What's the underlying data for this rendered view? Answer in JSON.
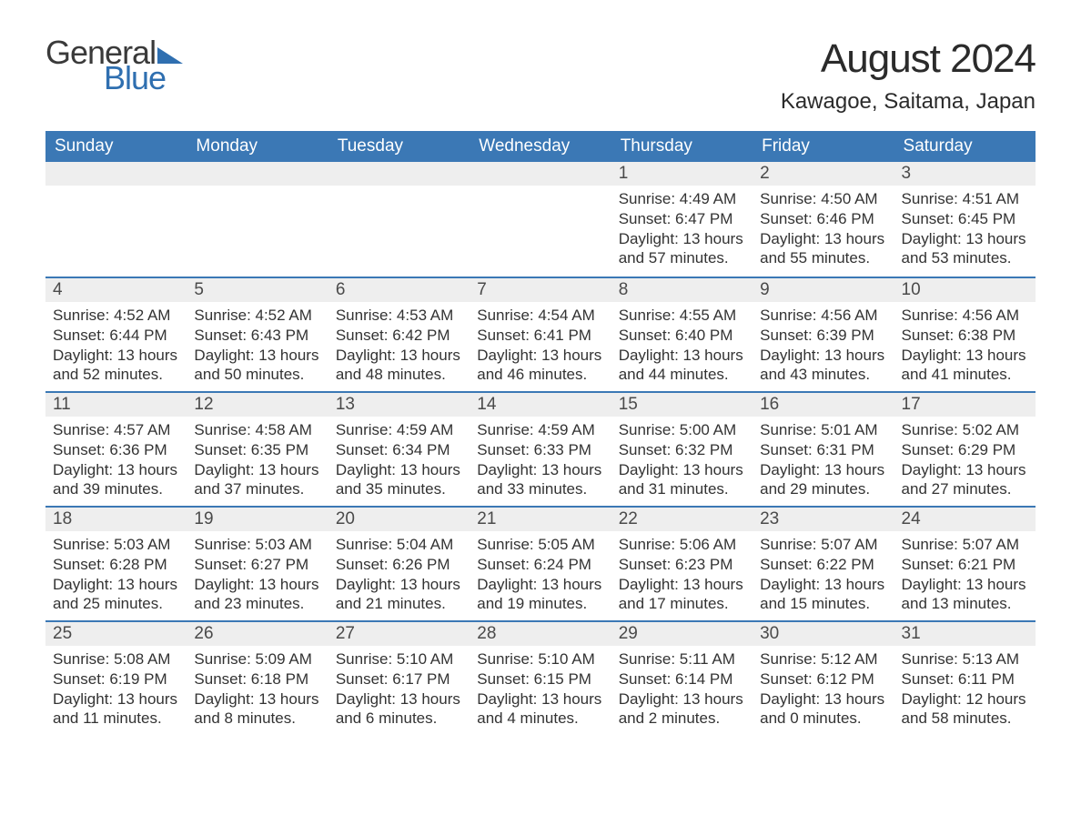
{
  "brand": {
    "word1": "General",
    "word2": "Blue",
    "accent_color": "#2f6fb0"
  },
  "title": "August 2024",
  "location": "Kawagoe, Saitama, Japan",
  "colors": {
    "header_bg": "#3b78b5",
    "header_text": "#ffffff",
    "daynum_bg": "#eeeeee",
    "week_border": "#3b78b5",
    "body_text": "#333333",
    "page_bg": "#ffffff"
  },
  "weekdays": [
    "Sunday",
    "Monday",
    "Tuesday",
    "Wednesday",
    "Thursday",
    "Friday",
    "Saturday"
  ],
  "labels": {
    "sunrise": "Sunrise:",
    "sunset": "Sunset:",
    "daylight": "Daylight:"
  },
  "weeks": [
    [
      null,
      null,
      null,
      null,
      {
        "n": "1",
        "sunrise": "4:49 AM",
        "sunset": "6:47 PM",
        "daylight": "13 hours and 57 minutes."
      },
      {
        "n": "2",
        "sunrise": "4:50 AM",
        "sunset": "6:46 PM",
        "daylight": "13 hours and 55 minutes."
      },
      {
        "n": "3",
        "sunrise": "4:51 AM",
        "sunset": "6:45 PM",
        "daylight": "13 hours and 53 minutes."
      }
    ],
    [
      {
        "n": "4",
        "sunrise": "4:52 AM",
        "sunset": "6:44 PM",
        "daylight": "13 hours and 52 minutes."
      },
      {
        "n": "5",
        "sunrise": "4:52 AM",
        "sunset": "6:43 PM",
        "daylight": "13 hours and 50 minutes."
      },
      {
        "n": "6",
        "sunrise": "4:53 AM",
        "sunset": "6:42 PM",
        "daylight": "13 hours and 48 minutes."
      },
      {
        "n": "7",
        "sunrise": "4:54 AM",
        "sunset": "6:41 PM",
        "daylight": "13 hours and 46 minutes."
      },
      {
        "n": "8",
        "sunrise": "4:55 AM",
        "sunset": "6:40 PM",
        "daylight": "13 hours and 44 minutes."
      },
      {
        "n": "9",
        "sunrise": "4:56 AM",
        "sunset": "6:39 PM",
        "daylight": "13 hours and 43 minutes."
      },
      {
        "n": "10",
        "sunrise": "4:56 AM",
        "sunset": "6:38 PM",
        "daylight": "13 hours and 41 minutes."
      }
    ],
    [
      {
        "n": "11",
        "sunrise": "4:57 AM",
        "sunset": "6:36 PM",
        "daylight": "13 hours and 39 minutes."
      },
      {
        "n": "12",
        "sunrise": "4:58 AM",
        "sunset": "6:35 PM",
        "daylight": "13 hours and 37 minutes."
      },
      {
        "n": "13",
        "sunrise": "4:59 AM",
        "sunset": "6:34 PM",
        "daylight": "13 hours and 35 minutes."
      },
      {
        "n": "14",
        "sunrise": "4:59 AM",
        "sunset": "6:33 PM",
        "daylight": "13 hours and 33 minutes."
      },
      {
        "n": "15",
        "sunrise": "5:00 AM",
        "sunset": "6:32 PM",
        "daylight": "13 hours and 31 minutes."
      },
      {
        "n": "16",
        "sunrise": "5:01 AM",
        "sunset": "6:31 PM",
        "daylight": "13 hours and 29 minutes."
      },
      {
        "n": "17",
        "sunrise": "5:02 AM",
        "sunset": "6:29 PM",
        "daylight": "13 hours and 27 minutes."
      }
    ],
    [
      {
        "n": "18",
        "sunrise": "5:03 AM",
        "sunset": "6:28 PM",
        "daylight": "13 hours and 25 minutes."
      },
      {
        "n": "19",
        "sunrise": "5:03 AM",
        "sunset": "6:27 PM",
        "daylight": "13 hours and 23 minutes."
      },
      {
        "n": "20",
        "sunrise": "5:04 AM",
        "sunset": "6:26 PM",
        "daylight": "13 hours and 21 minutes."
      },
      {
        "n": "21",
        "sunrise": "5:05 AM",
        "sunset": "6:24 PM",
        "daylight": "13 hours and 19 minutes."
      },
      {
        "n": "22",
        "sunrise": "5:06 AM",
        "sunset": "6:23 PM",
        "daylight": "13 hours and 17 minutes."
      },
      {
        "n": "23",
        "sunrise": "5:07 AM",
        "sunset": "6:22 PM",
        "daylight": "13 hours and 15 minutes."
      },
      {
        "n": "24",
        "sunrise": "5:07 AM",
        "sunset": "6:21 PM",
        "daylight": "13 hours and 13 minutes."
      }
    ],
    [
      {
        "n": "25",
        "sunrise": "5:08 AM",
        "sunset": "6:19 PM",
        "daylight": "13 hours and 11 minutes."
      },
      {
        "n": "26",
        "sunrise": "5:09 AM",
        "sunset": "6:18 PM",
        "daylight": "13 hours and 8 minutes."
      },
      {
        "n": "27",
        "sunrise": "5:10 AM",
        "sunset": "6:17 PM",
        "daylight": "13 hours and 6 minutes."
      },
      {
        "n": "28",
        "sunrise": "5:10 AM",
        "sunset": "6:15 PM",
        "daylight": "13 hours and 4 minutes."
      },
      {
        "n": "29",
        "sunrise": "5:11 AM",
        "sunset": "6:14 PM",
        "daylight": "13 hours and 2 minutes."
      },
      {
        "n": "30",
        "sunrise": "5:12 AM",
        "sunset": "6:12 PM",
        "daylight": "13 hours and 0 minutes."
      },
      {
        "n": "31",
        "sunrise": "5:13 AM",
        "sunset": "6:11 PM",
        "daylight": "12 hours and 58 minutes."
      }
    ]
  ]
}
